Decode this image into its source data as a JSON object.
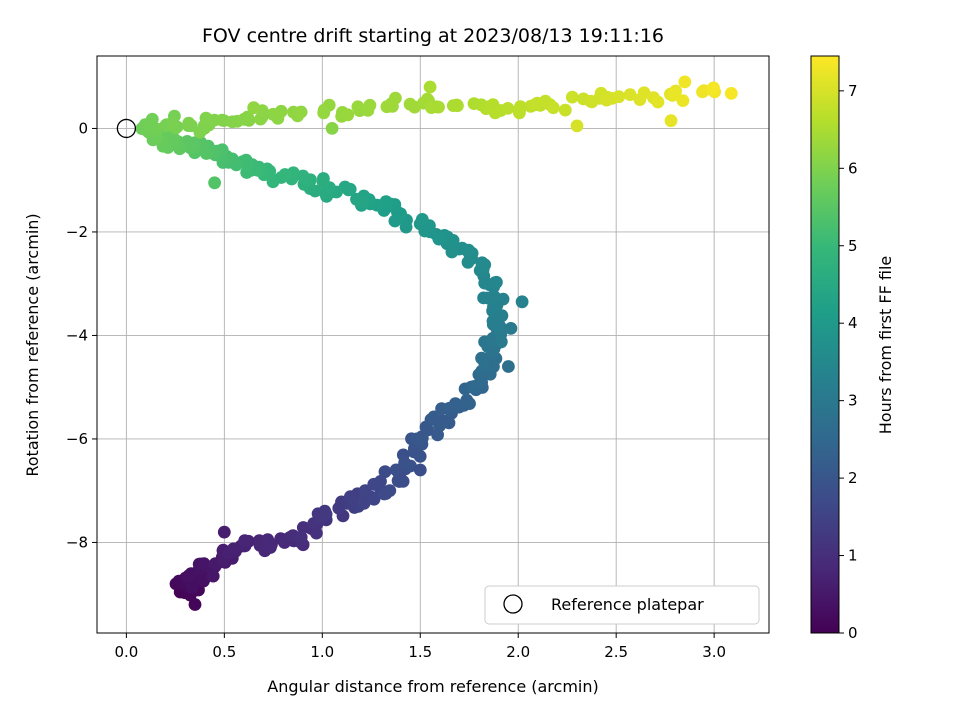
{
  "chart_data": {
    "type": "scatter",
    "title": "FOV centre drift starting at 2023/08/13 19:11:16",
    "xlabel": "Angular distance from reference (arcmin)",
    "ylabel": "Rotation from reference (arcmin)",
    "xlim": [
      -0.15,
      3.28
    ],
    "ylim": [
      -9.75,
      1.4
    ],
    "xticks": [
      "0.0",
      "0.5",
      "1.0",
      "1.5",
      "2.0",
      "2.5",
      "3.0"
    ],
    "xtick_values": [
      0,
      0.5,
      1.0,
      1.5,
      2.0,
      2.5,
      3.0
    ],
    "yticks": [
      "−8",
      "−6",
      "−4",
      "−2",
      "0"
    ],
    "ytick_values": [
      -8,
      -6,
      -4,
      -2,
      0
    ],
    "grid": true,
    "legend": {
      "placement": "lower-right",
      "label": "Reference platepar"
    },
    "colorbar": {
      "label": "Hours from first FF file",
      "min": 0,
      "max": 7.45,
      "ticks": [
        "0",
        "1",
        "2",
        "3",
        "4",
        "5",
        "6",
        "7"
      ],
      "tick_values": [
        0,
        1,
        2,
        3,
        4,
        5,
        6,
        7
      ],
      "colormap": "viridis"
    },
    "colormap_stops": [
      "#440154",
      "#482878",
      "#3e4989",
      "#31688e",
      "#26828e",
      "#1f9e89",
      "#35b779",
      "#6ece58",
      "#b5de2b",
      "#fde725"
    ],
    "reference_point": {
      "x": 0.0,
      "y": 0.0
    },
    "path": [
      [
        0.3,
        -9.0,
        0.0
      ],
      [
        0.3,
        -8.75,
        0.2
      ],
      [
        0.4,
        -8.55,
        0.4
      ],
      [
        0.6,
        -8.1,
        0.7
      ],
      [
        0.85,
        -8.0,
        0.9
      ],
      [
        1.1,
        -7.3,
        1.3
      ],
      [
        1.35,
        -6.9,
        1.7
      ],
      [
        1.5,
        -6.0,
        2.0
      ],
      [
        1.72,
        -5.3,
        2.3
      ],
      [
        1.88,
        -4.4,
        2.8
      ],
      [
        1.9,
        -3.6,
        3.2
      ],
      [
        1.82,
        -2.7,
        3.5
      ],
      [
        1.6,
        -2.1,
        3.8
      ],
      [
        1.3,
        -1.5,
        4.2
      ],
      [
        1.0,
        -1.1,
        4.6
      ],
      [
        0.7,
        -0.8,
        5.0
      ],
      [
        0.45,
        -0.5,
        5.3
      ],
      [
        0.25,
        -0.3,
        5.6
      ],
      [
        0.1,
        0.0,
        5.8
      ],
      [
        0.4,
        0.1,
        6.0
      ],
      [
        0.9,
        0.3,
        6.2
      ],
      [
        1.5,
        0.5,
        6.4
      ],
      [
        2.0,
        0.4,
        6.7
      ],
      [
        2.5,
        0.6,
        7.0
      ],
      [
        3.1,
        0.7,
        7.4
      ]
    ],
    "extra_points": [
      [
        0.5,
        -7.8,
        0.6
      ],
      [
        0.35,
        -9.2,
        0.1
      ],
      [
        2.02,
        -3.35,
        3.3
      ],
      [
        1.95,
        -4.6,
        2.7
      ],
      [
        1.5,
        -6.6,
        1.8
      ],
      [
        2.3,
        0.05,
        7.0
      ],
      [
        2.78,
        0.15,
        7.2
      ],
      [
        2.85,
        0.9,
        7.3
      ],
      [
        0.45,
        -1.05,
        5.4
      ],
      [
        1.05,
        0.0,
        6.1
      ],
      [
        0.65,
        0.4,
        6.2
      ],
      [
        1.55,
        0.8,
        6.5
      ]
    ]
  }
}
